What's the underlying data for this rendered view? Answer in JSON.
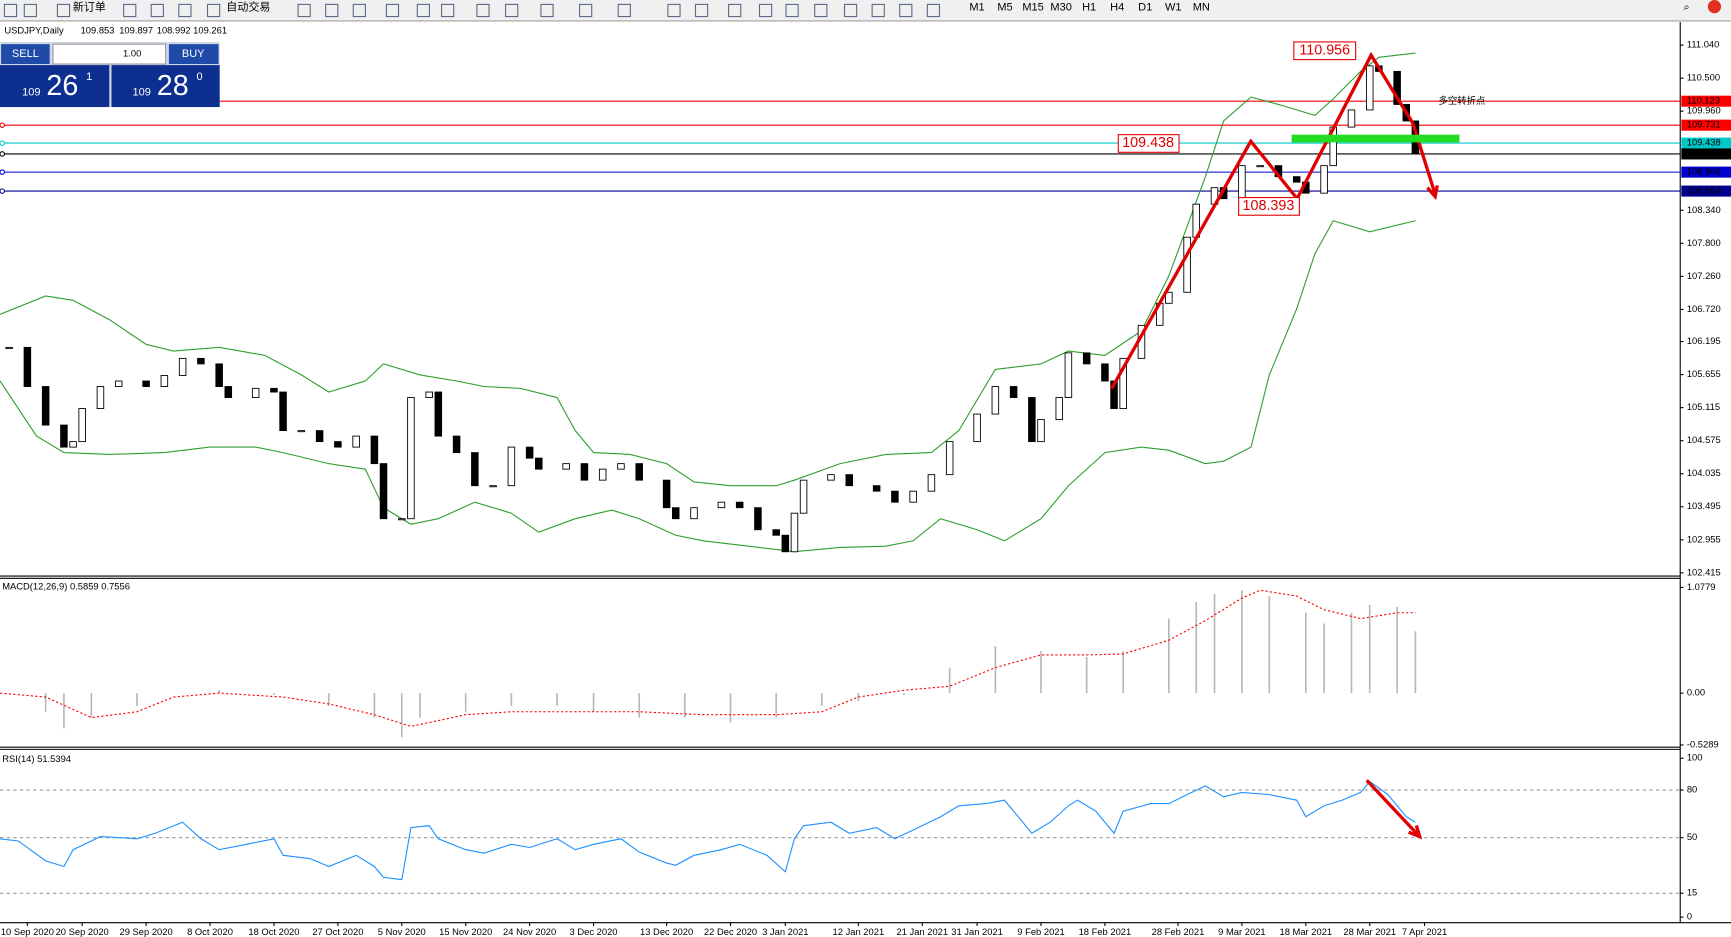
{
  "toolbar": {
    "new_order": "新订单",
    "auto_trading": "自动交易",
    "timeframes": [
      "M1",
      "M5",
      "M15",
      "M30",
      "H1",
      "H4",
      "D1",
      "W1",
      "MN"
    ]
  },
  "trade_panel": {
    "sell_label": "SELL",
    "lot": "1.00",
    "buy_label": "BUY",
    "sell_price": {
      "prefix": "109",
      "main": "26",
      "point": "1"
    },
    "buy_price": {
      "prefix": "109",
      "main": "28",
      "point": "0"
    }
  },
  "chart_data": [
    {
      "type": "candlestick",
      "symbol": "USDJPY,Daily",
      "ohlc": [
        109.853,
        109.897,
        108.992,
        109.261
      ],
      "annotations": [
        110.956,
        109.438,
        108.393
      ],
      "note": "多空转折点",
      "xlim": [
        0,
        184
      ],
      "ylim": [
        102.38,
        111.38
      ],
      "yticks": [
        {
          "value": 111.04,
          "label": "111.040"
        },
        {
          "value": 110.5,
          "label": "110.500"
        },
        {
          "value": 109.96,
          "label": "109.960"
        },
        {
          "value": 108.34,
          "label": "108.340"
        },
        {
          "value": 107.8,
          "label": "107.800"
        },
        {
          "value": 107.26,
          "label": "107.260"
        },
        {
          "value": 106.72,
          "label": "106.720"
        },
        106.195,
        105.655,
        105.115,
        104.575,
        104.035,
        103.495,
        102.955,
        102.415
      ],
      "xticks": [
        {
          "value": 3,
          "label": "10 Sep 2020"
        },
        {
          "value": 9,
          "label": "20 Sep 2020"
        },
        {
          "value": 16,
          "label": "29 Sep 2020"
        },
        {
          "value": 23,
          "label": "8 Oct 2020"
        },
        {
          "value": 30,
          "label": "18 Oct 2020"
        },
        {
          "value": 37,
          "label": "27 Oct 2020"
        },
        {
          "value": 44,
          "label": "5 Nov 2020"
        },
        {
          "value": 51,
          "label": "15 Nov 2020"
        },
        {
          "value": 58,
          "label": "24 Nov 2020"
        },
        {
          "value": 65,
          "label": "3 Dec 2020"
        },
        {
          "value": 73,
          "label": "13 Dec 2020"
        },
        {
          "value": 80,
          "label": "22 Dec 2020"
        },
        {
          "value": 86,
          "label": "3 Jan 2021"
        },
        {
          "value": 94,
          "label": "12 Jan 2021"
        },
        {
          "value": 101,
          "label": "21 Jan 2021"
        },
        {
          "value": 107,
          "label": "31 Jan 2021"
        },
        {
          "value": 114,
          "label": "9 Feb 2021"
        },
        {
          "value": 121,
          "label": "18 Feb 2021"
        },
        {
          "value": 129,
          "label": "28 Feb 2021"
        },
        {
          "value": 136,
          "label": "9 Mar 2021"
        },
        {
          "value": 143,
          "label": "18 Mar 2021"
        },
        {
          "value": 150,
          "label": "28 Mar 2021"
        },
        {
          "value": 156,
          "label": "7 Apr 2021"
        }
      ],
      "x": [
        1,
        3,
        5,
        7,
        8,
        9,
        11,
        13,
        16,
        18,
        20,
        22,
        24,
        25,
        28,
        30,
        31,
        33,
        35,
        37,
        39,
        41,
        42,
        44,
        45,
        47,
        48,
        50,
        52,
        54,
        56,
        58,
        59,
        62,
        64,
        66,
        68,
        70,
        73,
        74,
        76,
        79,
        81,
        83,
        85,
        86,
        87,
        88,
        91,
        93,
        96,
        98,
        100,
        102,
        104,
        107,
        109,
        111,
        113,
        114,
        116,
        117,
        119,
        121,
        122,
        123,
        125,
        127,
        128,
        130,
        131,
        133,
        134,
        136,
        138,
        140,
        142,
        143,
        145,
        146,
        148,
        150,
        151,
        153,
        154,
        155
      ],
      "values": [
        106.1,
        105.46,
        104.83,
        104.47,
        104.56,
        105.1,
        105.46,
        105.55,
        105.46,
        105.64,
        105.92,
        105.83,
        105.46,
        105.28,
        105.43,
        105.37,
        104.74,
        104.74,
        104.56,
        104.47,
        104.65,
        104.2,
        103.3,
        103.3,
        105.28,
        105.37,
        104.65,
        104.38,
        103.84,
        103.84,
        104.47,
        104.29,
        104.11,
        104.2,
        103.93,
        104.11,
        104.2,
        103.93,
        103.48,
        103.3,
        103.48,
        103.57,
        103.48,
        103.12,
        103.03,
        102.76,
        103.39,
        103.93,
        104.02,
        103.84,
        103.75,
        103.57,
        103.75,
        104.02,
        104.56,
        105.01,
        105.46,
        105.28,
        104.56,
        104.92,
        105.28,
        106.01,
        105.83,
        105.55,
        105.1,
        105.92,
        106.46,
        106.82,
        107.0,
        107.9,
        108.44,
        108.71,
        108.53,
        109.07,
        109.07,
        108.89,
        108.8,
        108.62,
        109.07,
        109.7,
        109.98,
        110.7,
        110.61,
        110.07,
        109.8,
        109.26
      ],
      "up_color": "#ffffff",
      "down_color": "#000000",
      "bands": [
        {
          "color": "#2e9e2e",
          "x": [
            0,
            5,
            8,
            12,
            16,
            19,
            24,
            29,
            33,
            36,
            40,
            42,
            46,
            50,
            53,
            57,
            61,
            63,
            65,
            69,
            73,
            76,
            80,
            85,
            87,
            92,
            97,
            102,
            105,
            109,
            114,
            117,
            121,
            125,
            128,
            132,
            134,
            137,
            140,
            144,
            146,
            149,
            151,
            155
          ],
          "values": [
            106.64,
            106.94,
            106.87,
            106.55,
            106.15,
            106.04,
            106.1,
            105.97,
            105.65,
            105.37,
            105.55,
            105.83,
            105.65,
            105.55,
            105.46,
            105.43,
            105.28,
            104.74,
            104.38,
            104.35,
            104.2,
            103.9,
            103.84,
            103.84,
            103.93,
            104.2,
            104.35,
            104.38,
            104.74,
            105.74,
            105.83,
            106.04,
            105.97,
            106.37,
            107.27,
            108.89,
            109.8,
            110.19,
            110.07,
            109.89,
            110.16,
            110.61,
            110.84,
            110.91
          ]
        },
        {
          "color": "#2e9e2e",
          "x": [
            0,
            4,
            7,
            12,
            18,
            23,
            28,
            31,
            36,
            40,
            42,
            45,
            48,
            52,
            56,
            59,
            63,
            67,
            70,
            74,
            77,
            82,
            87,
            92,
            97,
            100,
            103,
            107,
            110,
            114,
            117,
            121,
            125,
            128,
            132,
            134,
            137,
            139,
            142,
            144,
            146,
            150,
            155
          ],
          "values": [
            105.55,
            104.65,
            104.38,
            104.35,
            104.38,
            104.47,
            104.47,
            104.38,
            104.2,
            104.11,
            103.48,
            103.21,
            103.3,
            103.57,
            103.39,
            103.08,
            103.3,
            103.44,
            103.3,
            103.03,
            102.94,
            102.85,
            102.76,
            102.83,
            102.85,
            102.94,
            103.3,
            103.12,
            102.94,
            103.3,
            103.84,
            104.38,
            104.47,
            104.42,
            104.2,
            104.24,
            104.47,
            105.65,
            106.73,
            107.63,
            108.17,
            107.99,
            108.17
          ]
        }
      ],
      "levels": [
        {
          "value": 110.123,
          "color": "#ff0000",
          "text_color": "#ffffff"
        },
        {
          "value": 109.731,
          "color": "#ff0000",
          "text_color": "#ffffff"
        },
        {
          "value": 109.438,
          "color": "#00c8c8",
          "text_color": "#ffffff"
        },
        {
          "value": 109.261,
          "color": "#000000",
          "text_color": "#ffffff"
        },
        {
          "value": 108.964,
          "color": "#0000d0",
          "text_color": "#ffffff"
        },
        {
          "value": 108.654,
          "color": "#000090",
          "text_color": "#ffffff"
        }
      ]
    },
    {
      "type": "macd",
      "title": "MACD(12,26,9) 0.5859 0.7556",
      "xlim": [
        0,
        184
      ],
      "ylim": [
        -0.54,
        1.16
      ],
      "yticks": [
        1.0779,
        {
          "value": 0,
          "label": "0.00"
        },
        -0.5289
      ],
      "histogram": {
        "color": "#b8b8b8",
        "x": [
          0,
          5,
          7,
          10,
          15,
          19,
          24,
          30,
          36,
          41,
          44,
          46,
          51,
          56,
          61,
          65,
          70,
          75,
          80,
          85,
          90,
          94,
          99,
          104,
          109,
          114,
          119,
          123,
          128,
          131,
          133,
          136,
          139,
          143,
          145,
          148,
          150,
          153,
          155
        ],
        "values": [
          0,
          -0.19,
          -0.36,
          -0.25,
          -0.13,
          0,
          0.03,
          -0.02,
          -0.13,
          -0.25,
          -0.45,
          -0.25,
          -0.19,
          -0.13,
          -0.13,
          -0.19,
          -0.25,
          -0.25,
          -0.3,
          -0.25,
          -0.13,
          -0.08,
          -0.02,
          0.26,
          0.48,
          0.43,
          0.37,
          0.43,
          0.76,
          0.93,
          1.01,
          1.05,
          0.99,
          0.82,
          0.71,
          0.82,
          0.9,
          0.88,
          0.63
        ]
      },
      "signal": {
        "color": "#ff0000",
        "x": [
          0,
          5,
          10,
          15,
          19,
          24,
          31,
          36,
          41,
          45,
          51,
          56,
          63,
          70,
          77,
          85,
          90,
          94,
          99,
          104,
          109,
          114,
          119,
          123,
          128,
          132,
          136,
          138,
          142,
          145,
          149,
          153,
          155
        ],
        "values": [
          0,
          -0.04,
          -0.25,
          -0.19,
          -0.04,
          0,
          -0.04,
          -0.11,
          -0.22,
          -0.34,
          -0.22,
          -0.19,
          -0.19,
          -0.19,
          -0.22,
          -0.22,
          -0.19,
          -0.04,
          0.03,
          0.07,
          0.26,
          0.39,
          0.39,
          0.4,
          0.54,
          0.74,
          0.97,
          1.05,
          0.99,
          0.85,
          0.76,
          0.82,
          0.82
        ]
      }
    },
    {
      "type": "line",
      "title": "RSI(14) 51.5394",
      "xlim": [
        0,
        184
      ],
      "ylim": [
        -3.5,
        104.2
      ],
      "yticks": [
        100,
        80,
        50,
        15,
        0
      ],
      "grid": true,
      "color": "#1e90ff",
      "x": [
        0,
        2,
        5,
        7,
        8,
        11,
        15,
        17,
        20,
        22,
        24,
        27,
        30,
        31,
        34,
        36,
        39,
        41,
        42,
        44,
        45,
        47,
        48,
        51,
        53,
        56,
        58,
        61,
        63,
        65,
        68,
        70,
        73,
        74,
        76,
        79,
        81,
        84,
        86,
        87,
        88,
        91,
        93,
        96,
        98,
        100,
        103,
        105,
        108,
        110,
        113,
        115,
        117,
        118,
        120,
        122,
        123,
        126,
        128,
        130,
        132,
        134,
        136,
        139,
        142,
        143,
        145,
        147,
        149,
        150,
        152,
        154,
        155
      ],
      "values": [
        49.3,
        47.9,
        35.4,
        31.9,
        42.4,
        50.7,
        49.3,
        52.8,
        59.7,
        49.3,
        42.4,
        45.8,
        49.3,
        38.9,
        36.8,
        31.9,
        38.9,
        31.9,
        25.0,
        23.6,
        56.3,
        57.6,
        49.3,
        42.4,
        40.3,
        45.8,
        43.8,
        49.3,
        42.4,
        45.8,
        49.3,
        41.0,
        34.0,
        32.6,
        38.9,
        42.4,
        45.8,
        38.9,
        28.5,
        49.3,
        57.6,
        59.7,
        52.8,
        56.3,
        49.3,
        54.9,
        63.2,
        70.1,
        71.5,
        73.6,
        52.8,
        59.7,
        70.1,
        73.6,
        66.7,
        52.8,
        66.7,
        71.5,
        71.5,
        77.1,
        82.6,
        75.7,
        78.5,
        77.1,
        73.6,
        63.2,
        70.1,
        73.6,
        78.5,
        85.4,
        77.1,
        63.2,
        59.7
      ]
    }
  ]
}
